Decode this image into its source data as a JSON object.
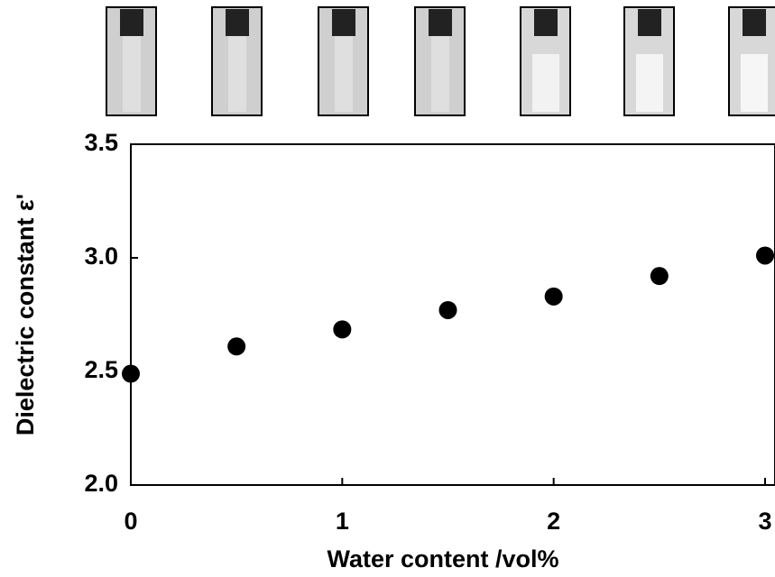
{
  "chart_data": {
    "type": "scatter",
    "x_label": "Water content  /vol%",
    "y_label": "Dielectric constant ε'",
    "x": [
      0,
      0.5,
      1,
      1.5,
      2,
      2.5,
      3
    ],
    "values": [
      2.49,
      2.61,
      2.685,
      2.77,
      2.83,
      2.92,
      3.01
    ],
    "color": "#000000",
    "xlim": [
      0,
      3
    ],
    "xticks": [
      0,
      1,
      2,
      3
    ],
    "ylim": [
      2.0,
      3.5
    ],
    "yticks": [
      {
        "value": 2.0,
        "label": "2.0"
      },
      2.5,
      {
        "value": 3.0,
        "label": "3.0"
      },
      3.5
    ]
  }
}
